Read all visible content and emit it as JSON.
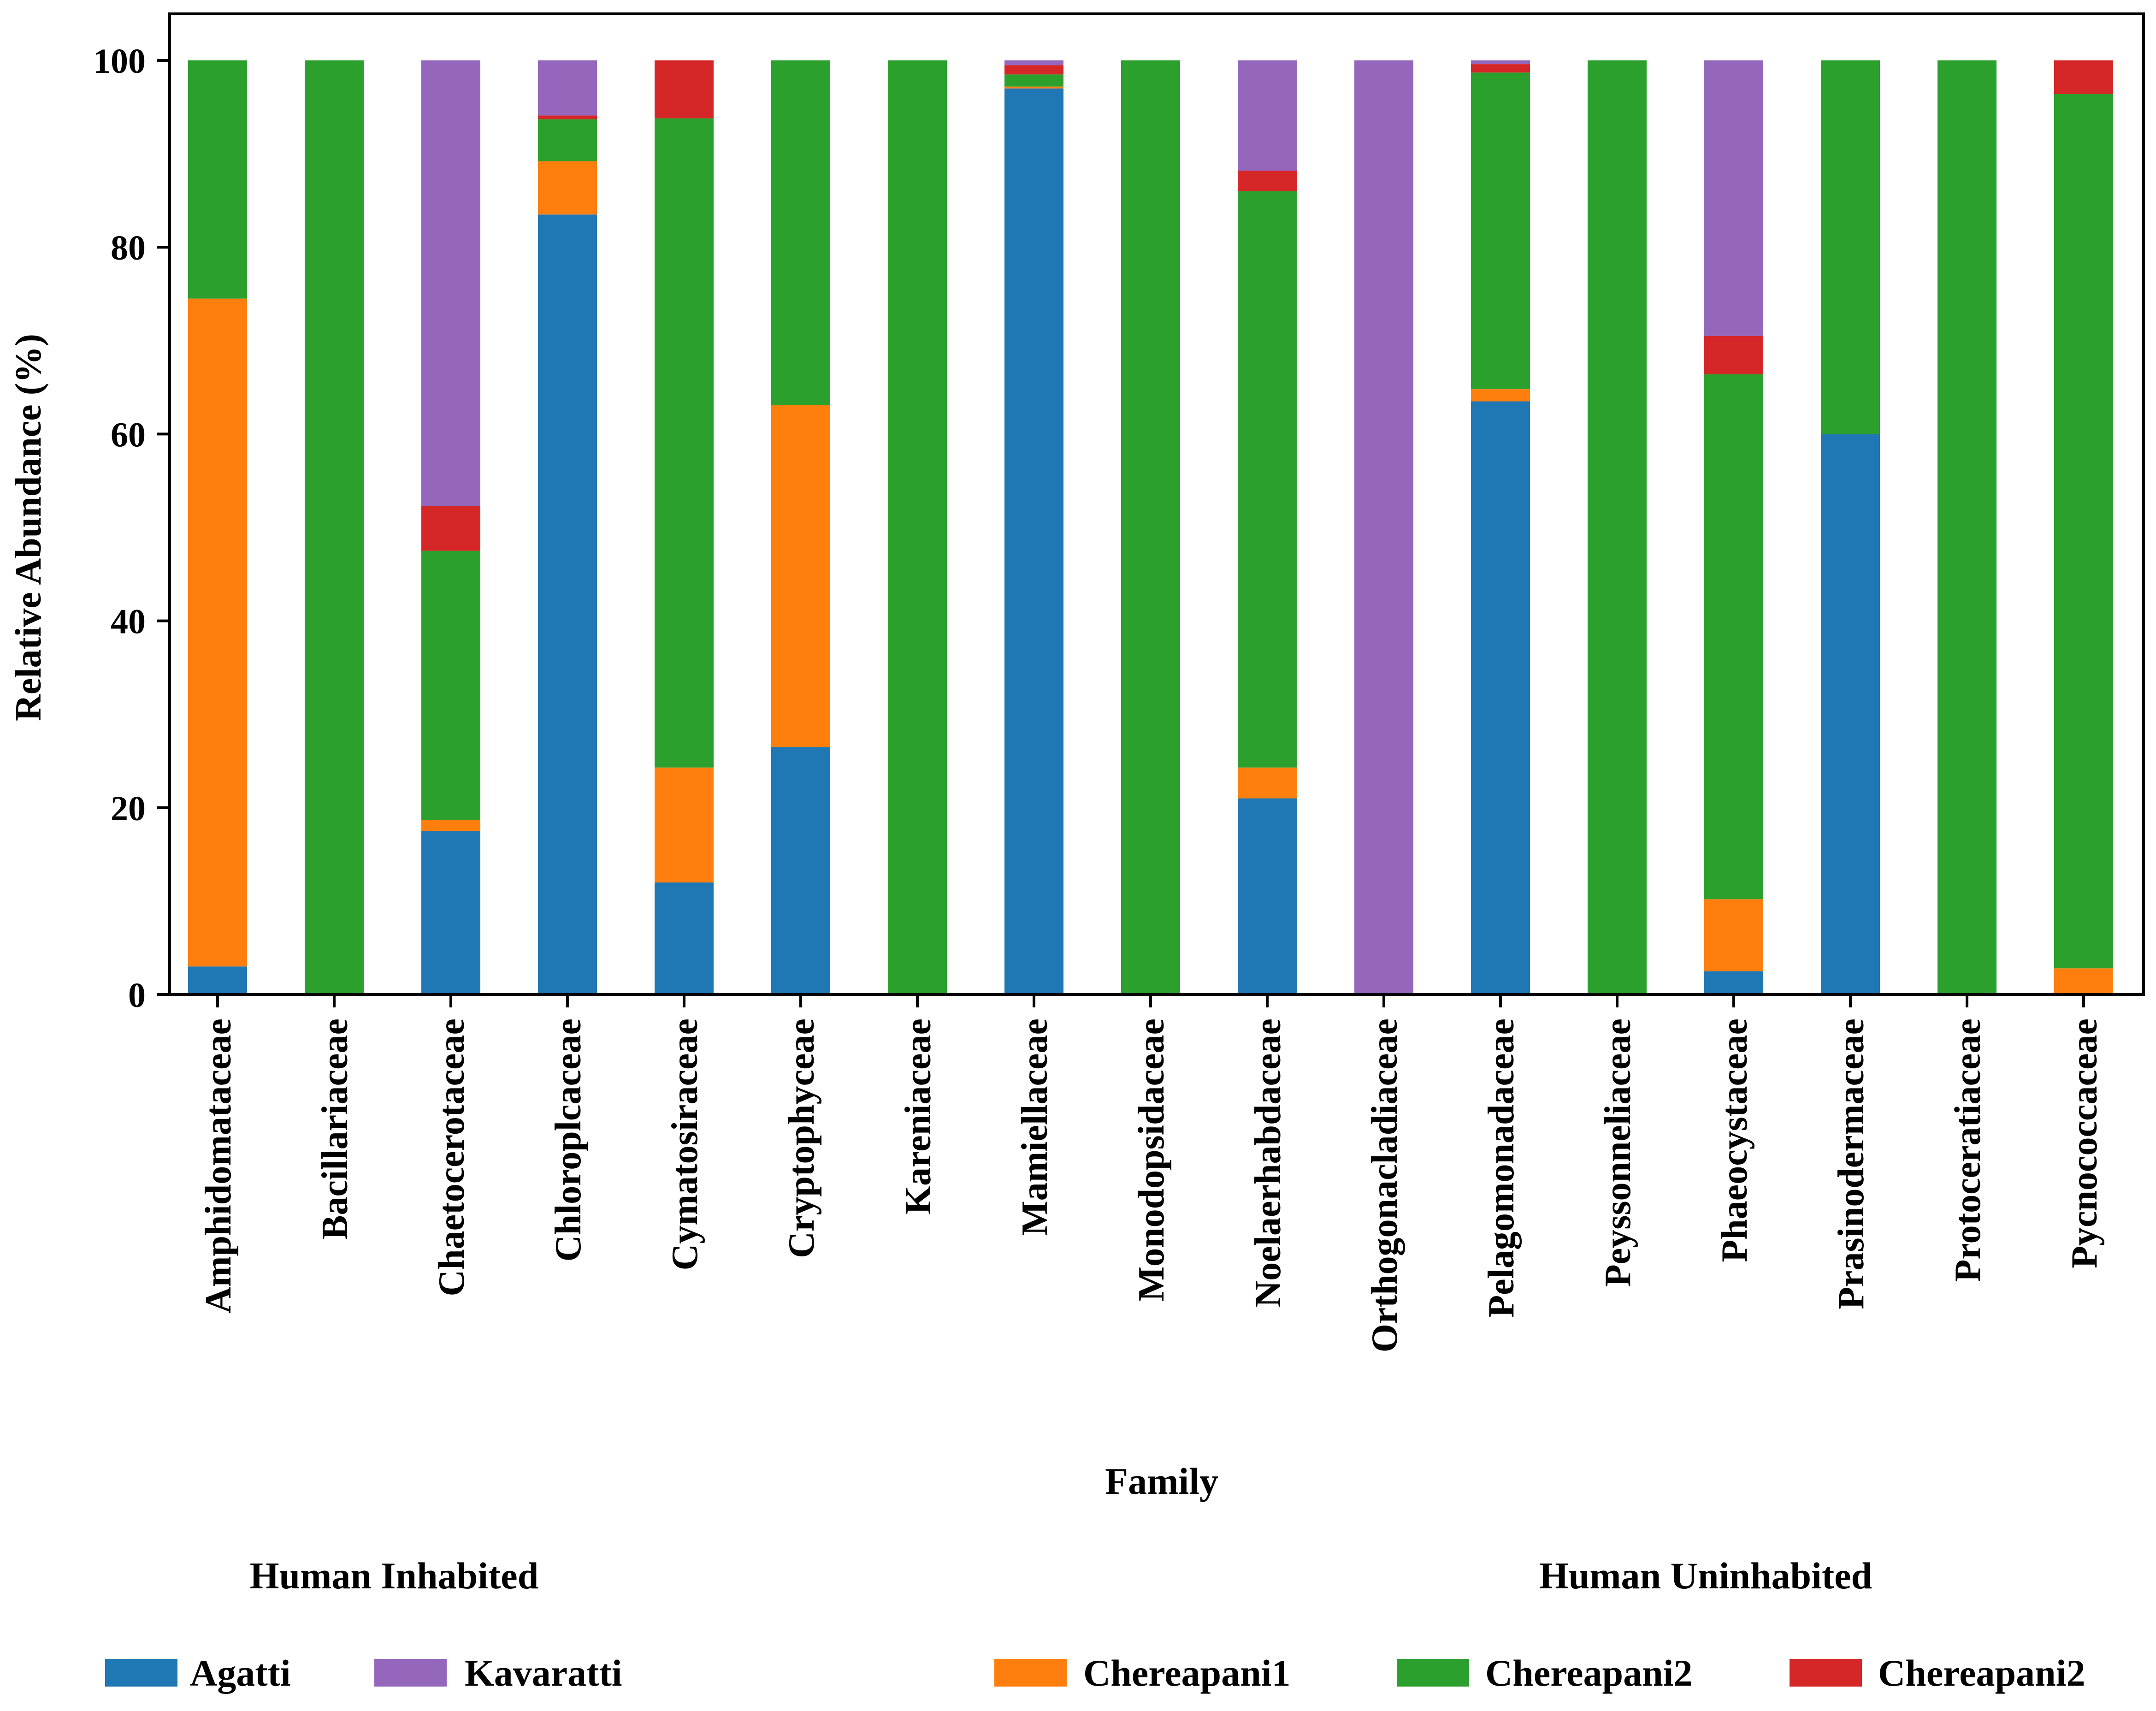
{
  "chart_data": {
    "type": "bar",
    "stacked": true,
    "title": "",
    "xlabel": "Family",
    "ylabel": "Relative Abundance (%)",
    "ylim": [
      0,
      100
    ],
    "yticks": [
      0,
      20,
      40,
      60,
      80,
      100
    ],
    "categories": [
      "Amphidomataceae",
      "Bacillariaceae",
      "Chaetocerotaceae",
      "Chloroplcaceae",
      "Cymatosiraceae",
      "Cryptophyceae",
      "Kareniaceae",
      "Mamiellaceae",
      "Monodopsidaceae",
      "Noelaerhabdaceae",
      "Orthogonacladiaceae",
      "Pelagomonadaceae",
      "Peyssonneliaceae",
      "Phaeocystaceae",
      "Prasinodermaceae",
      "Protoceratiaceae",
      "Pycnococcaceae"
    ],
    "series": [
      {
        "name": "Agatti",
        "color": "#1f77b4",
        "values": [
          3,
          0,
          17.5,
          83.5,
          12,
          26.5,
          0,
          97,
          0,
          21,
          0,
          63.5,
          0,
          2.5,
          60,
          0,
          0
        ]
      },
      {
        "name": "Chereapani1",
        "color": "#ff7f0e",
        "values": [
          71.5,
          0,
          1.2,
          5.7,
          12.3,
          36.6,
          0,
          0.2,
          0,
          3.3,
          0,
          1.3,
          0,
          7.7,
          0,
          0,
          2.8
        ]
      },
      {
        "name": "Chereapani2",
        "color": "#2ca02c",
        "values": [
          25.5,
          100,
          28.8,
          4.5,
          69.5,
          36.9,
          100,
          1.3,
          100,
          61.7,
          0,
          33.9,
          100,
          56.2,
          40,
          100,
          93.6
        ]
      },
      {
        "name": "Chereapani2",
        "color": "#d62728",
        "values": [
          0,
          0,
          4.8,
          0.4,
          6.2,
          0,
          0,
          1.0,
          0,
          2.2,
          0,
          0.9,
          0,
          4.1,
          0,
          0,
          3.6
        ]
      },
      {
        "name": "Kavaratti",
        "color": "#9467bd",
        "values": [
          0,
          0,
          47.7,
          5.9,
          0,
          0,
          0,
          0.5,
          0,
          11.8,
          100,
          0.4,
          0,
          29.5,
          0,
          0,
          0
        ]
      }
    ],
    "legend": {
      "placement": "bottom",
      "groups": [
        {
          "title": "Human Inhabited",
          "entries": [
            {
              "label": "Agatti",
              "color": "#1f77b4"
            },
            {
              "label": "Kavaratti",
              "color": "#9467bd"
            }
          ]
        },
        {
          "title": "Human Uninhabited",
          "entries": [
            {
              "label": "Chereapani1",
              "color": "#ff7f0e"
            },
            {
              "label": "Chereapani2",
              "color": "#2ca02c"
            },
            {
              "label": "Chereapani2",
              "color": "#d62728"
            }
          ]
        }
      ]
    }
  }
}
